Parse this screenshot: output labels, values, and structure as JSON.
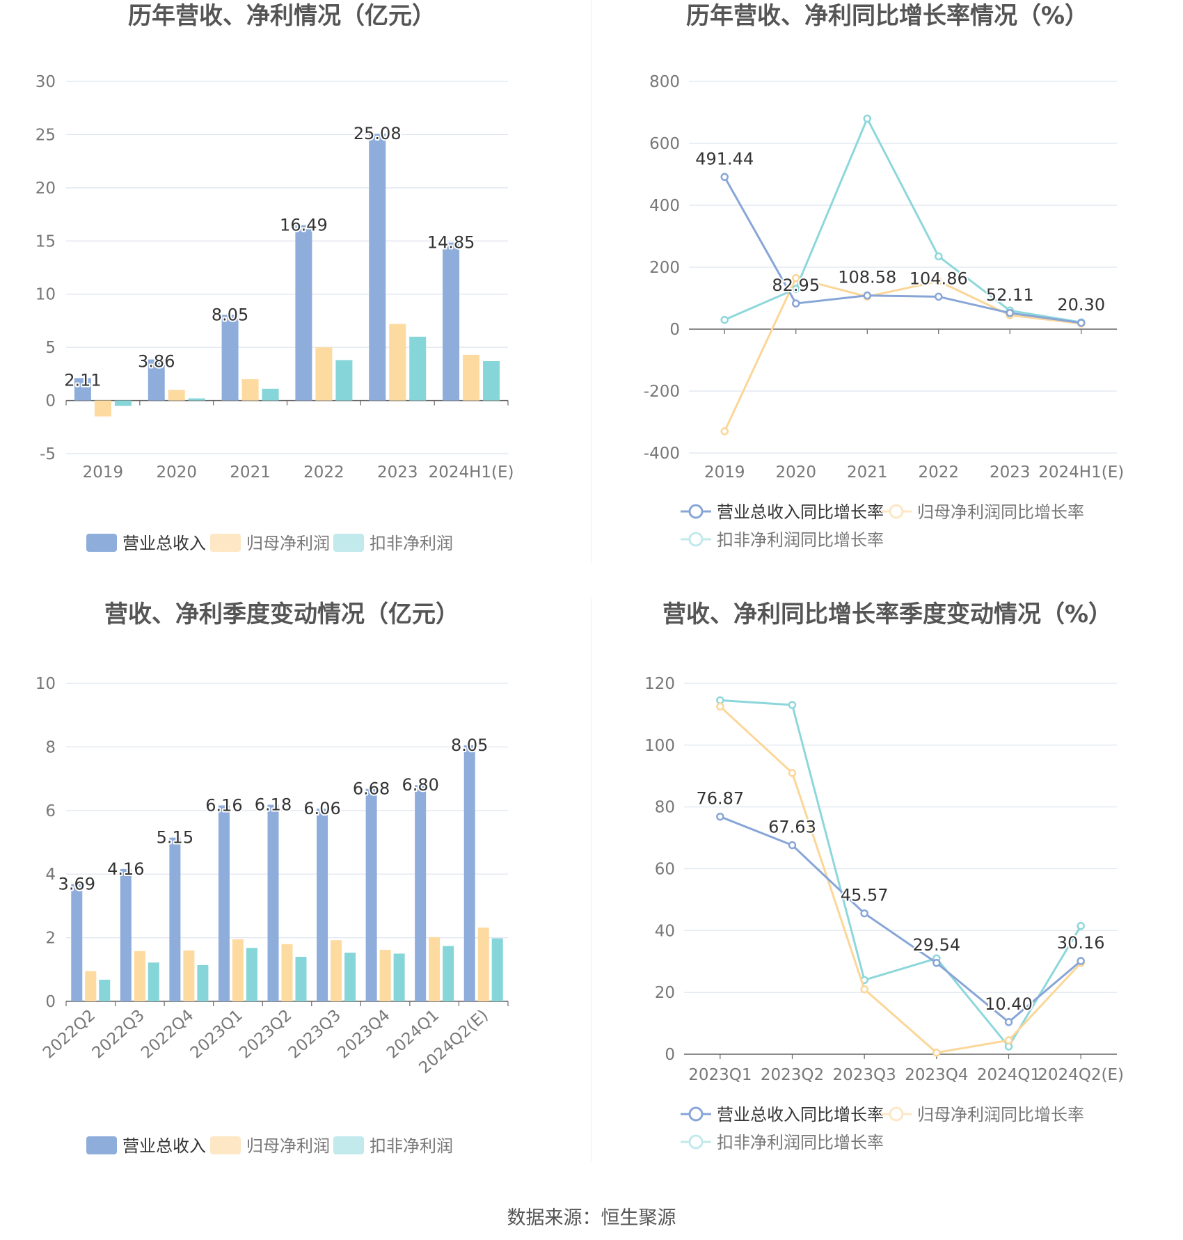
{
  "source_label": "数据来源：恒生聚源",
  "colors": {
    "revenue": "#8eaddb",
    "net_profit": "#fddaa0",
    "deducted_profit": "#86d5d8",
    "revenue_line": "#87a5d7",
    "net_profit_line": "#fbd698",
    "deducted_line": "#8dd7db",
    "grid": "#dde3ef",
    "axis": "#666666"
  },
  "chart_data": [
    {
      "id": "annual",
      "type": "bar",
      "title": "历年营收、净利情况（亿元）",
      "categories": [
        "2019",
        "2020",
        "2021",
        "2022",
        "2023",
        "2024H1(E)"
      ],
      "ylim": [
        -5,
        30
      ],
      "yticks": [
        30,
        25,
        20,
        15,
        10,
        5,
        0,
        -5
      ],
      "grid": true,
      "legend_position": "bottom",
      "series": [
        {
          "name": "营业总收入",
          "values": [
            2.11,
            3.86,
            8.05,
            16.49,
            25.08,
            14.85
          ],
          "labels": [
            "2.11",
            "3.86",
            "8.05",
            "16.49",
            "25.08",
            "14.85"
          ]
        },
        {
          "name": "归母净利润",
          "values": [
            -1.5,
            1.0,
            2.0,
            5.0,
            7.2,
            4.3
          ]
        },
        {
          "name": "扣非净利润",
          "values": [
            -0.5,
            0.2,
            1.1,
            3.8,
            6.0,
            3.7
          ]
        }
      ]
    },
    {
      "id": "annual_growth",
      "type": "line",
      "title": "历年营收、净利同比增长率情况（%）",
      "categories": [
        "2019",
        "2020",
        "2021",
        "2022",
        "2023",
        "2024H1(E)"
      ],
      "ylim": [
        -400,
        800
      ],
      "yticks": [
        800,
        600,
        400,
        200,
        0,
        -200,
        -400
      ],
      "grid": true,
      "legend_position": "bottom",
      "series": [
        {
          "name": "营业总收入同比增长率",
          "values": [
            491.44,
            82.95,
            108.58,
            104.86,
            52.11,
            20.3
          ],
          "labels": [
            "491.44",
            "82.95",
            "108.58",
            "104.86",
            "52.11",
            "20.30"
          ]
        },
        {
          "name": "归母净利润同比增长率",
          "values": [
            -330,
            165,
            105,
            155,
            45,
            18
          ]
        },
        {
          "name": "扣非净利润同比增长率",
          "values": [
            30,
            130,
            680,
            235,
            60,
            22
          ]
        }
      ]
    },
    {
      "id": "quarterly",
      "type": "bar",
      "title": "营收、净利季度变动情况（亿元）",
      "categories": [
        "2022Q2",
        "2022Q3",
        "2022Q4",
        "2023Q1",
        "2023Q2",
        "2023Q3",
        "2023Q4",
        "2024Q1",
        "2024Q2(E)"
      ],
      "ylim": [
        0,
        10
      ],
      "yticks": [
        10,
        8,
        6,
        4,
        2,
        0
      ],
      "grid": true,
      "legend_position": "bottom",
      "series": [
        {
          "name": "营业总收入",
          "values": [
            3.69,
            4.16,
            5.15,
            6.16,
            6.18,
            6.06,
            6.68,
            6.8,
            8.05
          ],
          "labels": [
            "3.69",
            "4.16",
            "5.15",
            "6.16",
            "6.18",
            "6.06",
            "6.68",
            "6.80",
            "8.05"
          ]
        },
        {
          "name": "归母净利润",
          "values": [
            0.95,
            1.58,
            1.6,
            1.95,
            1.8,
            1.92,
            1.62,
            2.02,
            2.32
          ]
        },
        {
          "name": "扣非净利润",
          "values": [
            0.68,
            1.22,
            1.14,
            1.68,
            1.4,
            1.53,
            1.5,
            1.74,
            1.98
          ]
        }
      ]
    },
    {
      "id": "quarterly_growth",
      "type": "line",
      "title": "营收、净利同比增长率季度变动情况（%）",
      "categories": [
        "2023Q1",
        "2023Q2",
        "2023Q3",
        "2023Q4",
        "2024Q1",
        "2024Q2(E)"
      ],
      "ylim": [
        0,
        120
      ],
      "yticks": [
        120,
        100,
        80,
        60,
        40,
        20,
        0
      ],
      "grid": true,
      "legend_position": "bottom",
      "series": [
        {
          "name": "营业总收入同比增长率",
          "values": [
            76.87,
            67.63,
            45.57,
            29.54,
            10.4,
            30.16
          ],
          "labels": [
            "76.87",
            "67.63",
            "45.57",
            "29.54",
            "10.40",
            "30.16"
          ]
        },
        {
          "name": "归母净利润同比增长率",
          "values": [
            112.5,
            91,
            21,
            0.5,
            4.5,
            29.5
          ]
        },
        {
          "name": "扣非净利润同比增长率",
          "values": [
            114.5,
            113,
            24,
            31,
            2.5,
            41.5
          ]
        }
      ]
    }
  ]
}
